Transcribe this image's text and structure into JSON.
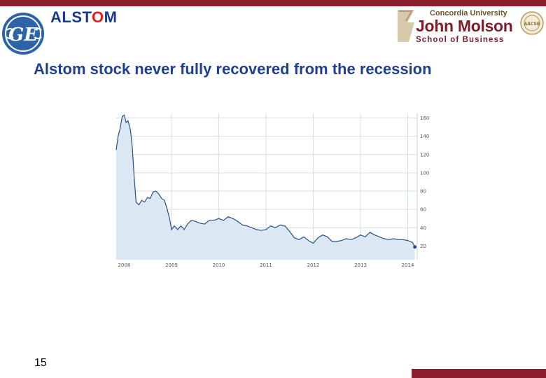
{
  "colors": {
    "accent_bar": "#8c1d2c",
    "title_text": "#1f3f8f",
    "chart_line": "#2b4f86",
    "chart_fill": "#dbe7f3",
    "grid": "#d4dde6"
  },
  "logos": {
    "ge": {
      "icon": "ge-monogram-icon",
      "text": "GE"
    },
    "alstom": {
      "text_before": "ALST",
      "o_mark": "O",
      "text_after": "M"
    },
    "john_molson": {
      "university": "Concordia University",
      "name": "John Molson",
      "school": "School of Business"
    },
    "aacsb": {
      "icon": "aacsb-seal-icon",
      "text": "AACSB"
    }
  },
  "slide": {
    "title": "Alstom stock never fully recovered from the recession",
    "page_number": "15"
  },
  "chart_data": {
    "type": "area",
    "title": "",
    "xlabel": "",
    "ylabel": "",
    "x_ticks": [
      "2008",
      "2009",
      "2010",
      "2011",
      "2012",
      "2013",
      "2014"
    ],
    "y_ticks": [
      "20",
      "40",
      "60",
      "80",
      "100",
      "120",
      "140",
      "160"
    ],
    "ylim": [
      5,
      165
    ],
    "xlim": [
      2007.83,
      2014.2
    ],
    "y_axis_side": "right",
    "grid": true,
    "legend": "none",
    "series": [
      {
        "values": [
          [
            2007.83,
            125
          ],
          [
            2007.87,
            140
          ],
          [
            2007.91,
            148
          ],
          [
            2007.96,
            162
          ],
          [
            2008.0,
            163
          ],
          [
            2008.04,
            155
          ],
          [
            2008.08,
            157
          ],
          [
            2008.13,
            147
          ],
          [
            2008.17,
            128
          ],
          [
            2008.21,
            95
          ],
          [
            2008.25,
            68
          ],
          [
            2008.31,
            65
          ],
          [
            2008.37,
            70
          ],
          [
            2008.43,
            68
          ],
          [
            2008.49,
            73
          ],
          [
            2008.55,
            72
          ],
          [
            2008.61,
            79
          ],
          [
            2008.67,
            80
          ],
          [
            2008.73,
            77
          ],
          [
            2008.79,
            72
          ],
          [
            2008.85,
            70
          ],
          [
            2008.91,
            60
          ],
          [
            2008.96,
            50
          ],
          [
            2009.0,
            38
          ],
          [
            2009.06,
            42
          ],
          [
            2009.13,
            38
          ],
          [
            2009.2,
            42
          ],
          [
            2009.27,
            38
          ],
          [
            2009.34,
            44
          ],
          [
            2009.42,
            48
          ],
          [
            2009.5,
            47
          ],
          [
            2009.6,
            45
          ],
          [
            2009.7,
            44
          ],
          [
            2009.8,
            48
          ],
          [
            2009.9,
            48
          ],
          [
            2010.0,
            50
          ],
          [
            2010.1,
            48
          ],
          [
            2010.2,
            52
          ],
          [
            2010.3,
            50
          ],
          [
            2010.4,
            47
          ],
          [
            2010.5,
            43
          ],
          [
            2010.6,
            42
          ],
          [
            2010.7,
            40
          ],
          [
            2010.8,
            38
          ],
          [
            2010.9,
            37
          ],
          [
            2011.0,
            38
          ],
          [
            2011.1,
            42
          ],
          [
            2011.2,
            40
          ],
          [
            2011.3,
            43
          ],
          [
            2011.4,
            42
          ],
          [
            2011.5,
            36
          ],
          [
            2011.6,
            29
          ],
          [
            2011.7,
            27
          ],
          [
            2011.8,
            30
          ],
          [
            2011.9,
            26
          ],
          [
            2012.0,
            23
          ],
          [
            2012.1,
            29
          ],
          [
            2012.2,
            32
          ],
          [
            2012.3,
            30
          ],
          [
            2012.4,
            25
          ],
          [
            2012.5,
            25
          ],
          [
            2012.6,
            26
          ],
          [
            2012.7,
            28
          ],
          [
            2012.8,
            27
          ],
          [
            2012.9,
            29
          ],
          [
            2013.0,
            32
          ],
          [
            2013.1,
            30
          ],
          [
            2013.2,
            35
          ],
          [
            2013.3,
            32
          ],
          [
            2013.4,
            30
          ],
          [
            2013.5,
            28
          ],
          [
            2013.6,
            27
          ],
          [
            2013.7,
            28
          ],
          [
            2013.8,
            27
          ],
          [
            2013.9,
            27
          ],
          [
            2014.0,
            26
          ],
          [
            2014.1,
            24
          ],
          [
            2014.15,
            19
          ]
        ]
      }
    ]
  }
}
